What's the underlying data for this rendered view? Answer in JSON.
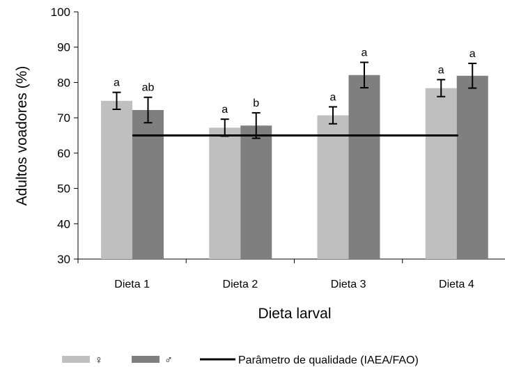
{
  "chart_data": {
    "type": "bar",
    "xlabel": "Dieta larval",
    "ylabel": "Adultos voadores (%)",
    "ylim": [
      30,
      100
    ],
    "yticks": [
      30,
      40,
      50,
      60,
      70,
      80,
      90,
      100
    ],
    "grid": false,
    "legend_position": "bottom",
    "categories": [
      "Dieta 1",
      "Dieta 2",
      "Dieta 3",
      "Dieta 4"
    ],
    "series": [
      {
        "name": "♀",
        "color": "#bfbfbf",
        "values": [
          74.8,
          67.2,
          70.7,
          78.4
        ],
        "error": [
          2.4,
          2.4,
          2.4,
          2.4
        ],
        "labels": [
          "a",
          "a",
          "a",
          "a"
        ]
      },
      {
        "name": "♂",
        "color": "#7f7f7f",
        "values": [
          72.2,
          67.8,
          82.1,
          81.9
        ],
        "error": [
          3.6,
          3.6,
          3.6,
          3.5
        ],
        "labels": [
          "ab",
          "b",
          "a",
          "a"
        ]
      }
    ],
    "reference_line": {
      "name": "Parâmetro de qualidade (IAEA/FAO)",
      "value": 65,
      "color": "#000000"
    }
  }
}
